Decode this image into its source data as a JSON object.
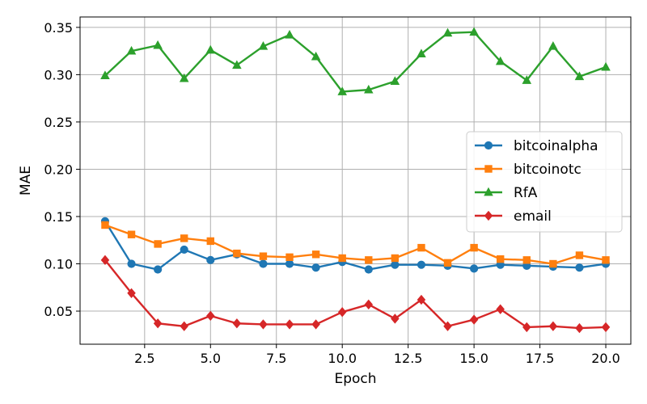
{
  "chart_data": {
    "type": "line",
    "title": "",
    "xlabel": "Epoch",
    "ylabel": "MAE",
    "xlim": [
      0.05,
      20.95
    ],
    "ylim": [
      0.015,
      0.361
    ],
    "x_ticks": [
      2.5,
      5.0,
      7.5,
      10.0,
      12.5,
      15.0,
      17.5,
      20.0
    ],
    "x_tick_labels": [
      "2.5",
      "5.0",
      "7.5",
      "10.0",
      "12.5",
      "15.0",
      "17.5",
      "20.0"
    ],
    "y_ticks": [
      0.05,
      0.1,
      0.15,
      0.2,
      0.25,
      0.3,
      0.35
    ],
    "y_tick_labels": [
      "0.05",
      "0.10",
      "0.15",
      "0.20",
      "0.25",
      "0.30",
      "0.35"
    ],
    "grid": true,
    "legend_position": "center-right",
    "x": [
      1,
      2,
      3,
      4,
      5,
      6,
      7,
      8,
      9,
      10,
      11,
      12,
      13,
      14,
      15,
      16,
      17,
      18,
      19,
      20
    ],
    "series": [
      {
        "name": "bitcoinalpha",
        "color": "#1f77b4",
        "marker": "circle",
        "values": [
          0.145,
          0.1,
          0.094,
          0.115,
          0.104,
          0.11,
          0.1,
          0.1,
          0.096,
          0.102,
          0.094,
          0.099,
          0.099,
          0.098,
          0.095,
          0.099,
          0.098,
          0.097,
          0.096,
          0.1
        ]
      },
      {
        "name": "bitcoinotc",
        "color": "#ff7f0e",
        "marker": "square",
        "values": [
          0.141,
          0.131,
          0.121,
          0.127,
          0.124,
          0.111,
          0.108,
          0.107,
          0.11,
          0.106,
          0.104,
          0.106,
          0.117,
          0.101,
          0.117,
          0.105,
          0.104,
          0.1,
          0.109,
          0.104
        ]
      },
      {
        "name": "RfA",
        "color": "#2ca02c",
        "marker": "triangle",
        "values": [
          0.299,
          0.325,
          0.331,
          0.296,
          0.326,
          0.31,
          0.33,
          0.342,
          0.319,
          0.282,
          0.284,
          0.293,
          0.322,
          0.344,
          0.345,
          0.314,
          0.294,
          0.33,
          0.298,
          0.308
        ]
      },
      {
        "name": "email",
        "color": "#d62728",
        "marker": "diamond",
        "values": [
          0.104,
          0.069,
          0.037,
          0.034,
          0.045,
          0.037,
          0.036,
          0.036,
          0.036,
          0.049,
          0.057,
          0.042,
          0.062,
          0.034,
          0.041,
          0.052,
          0.033,
          0.034,
          0.032,
          0.033
        ]
      }
    ]
  }
}
